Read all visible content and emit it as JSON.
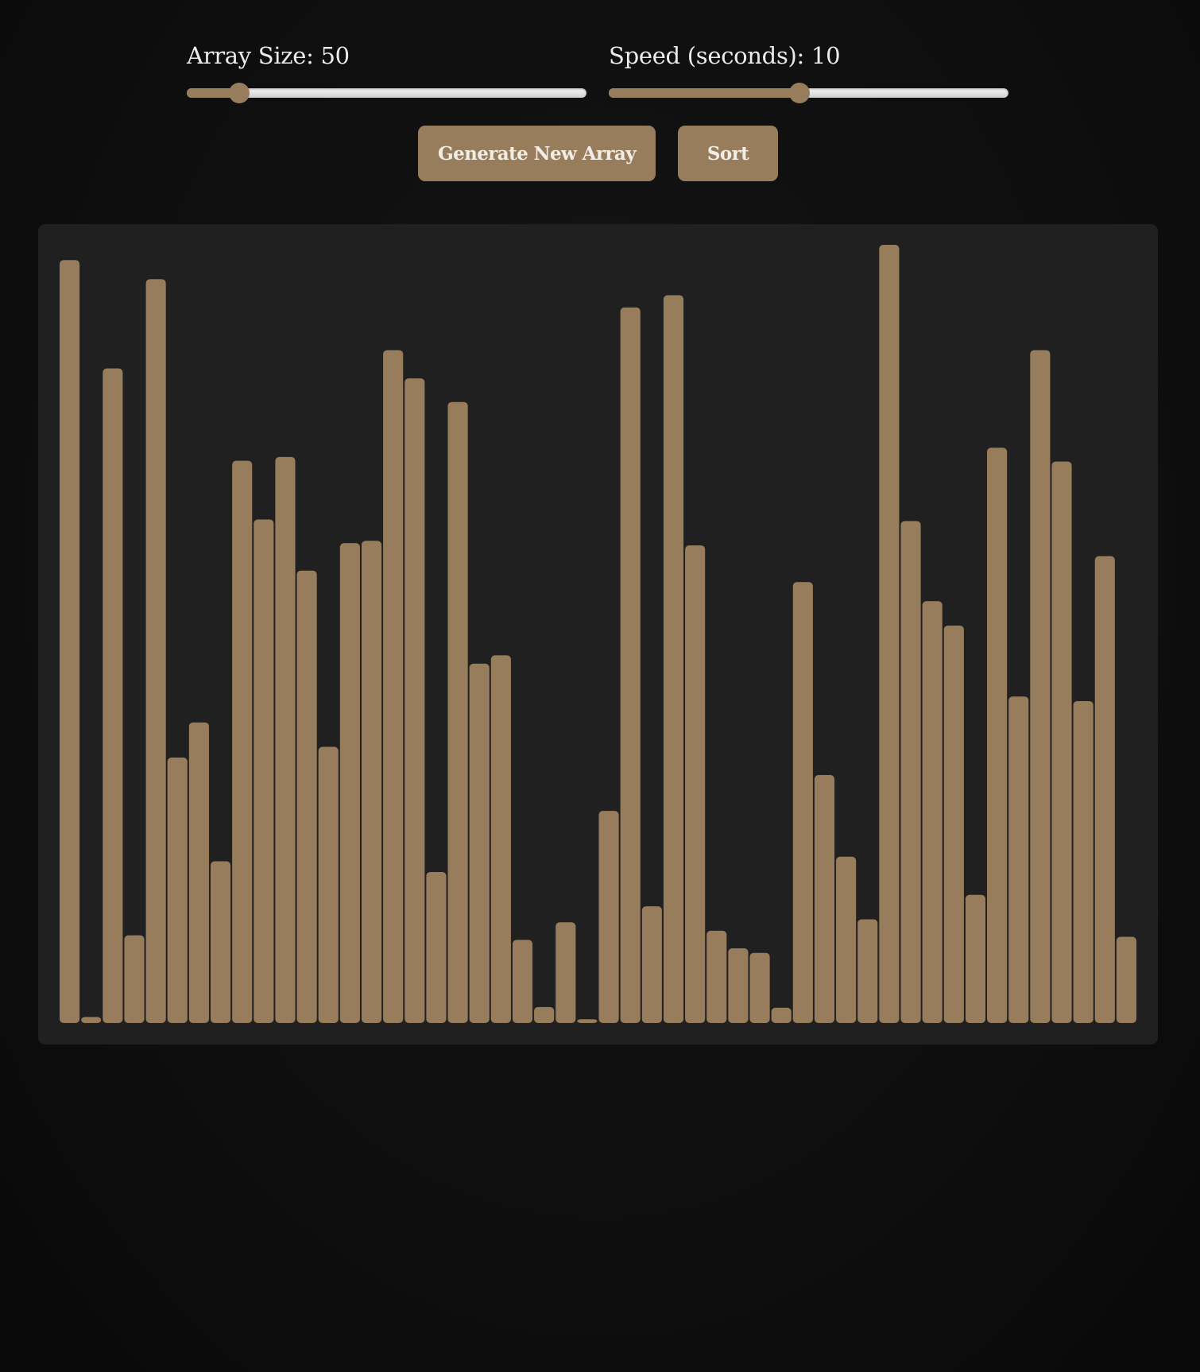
{
  "controls": {
    "array_size": {
      "label": "Array Size: 50",
      "value": 50,
      "min": 10,
      "max": 500
    },
    "speed": {
      "label": "Speed (seconds): 10",
      "value": 10,
      "min": 1,
      "max": 20
    }
  },
  "buttons": {
    "generate_label": "Generate New Array",
    "sort_label": "Sort"
  },
  "colors": {
    "accent": "#987d5c",
    "panel": "#202020",
    "background": "#0f0f0f",
    "text": "#ececec"
  },
  "chart_data": {
    "type": "bar",
    "ylim": [
      0,
      1000
    ],
    "grid": false,
    "values": [
      1000,
      8,
      858,
      115,
      975,
      348,
      394,
      212,
      737,
      660,
      742,
      593,
      362,
      629,
      632,
      882,
      845,
      198,
      814,
      471,
      482,
      109,
      21,
      132,
      5,
      278,
      938,
      153,
      954,
      626,
      121,
      98,
      92,
      20,
      578,
      325,
      218,
      136,
      1020,
      658,
      553,
      521,
      168,
      754,
      428,
      882,
      736,
      422,
      612,
      113
    ]
  }
}
